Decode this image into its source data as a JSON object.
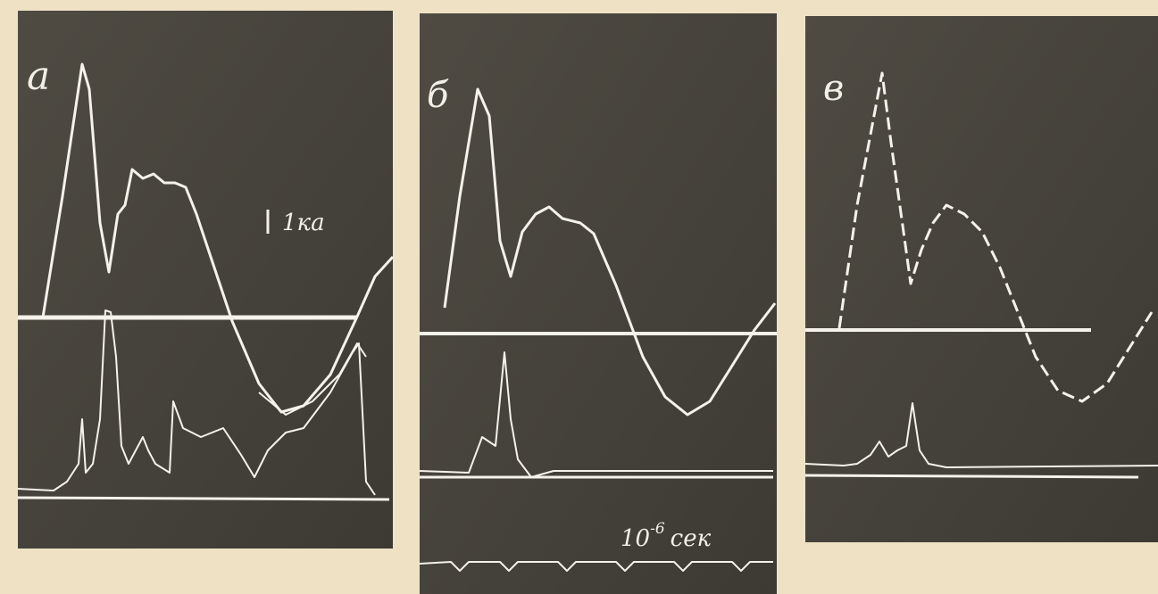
{
  "panels": [
    {
      "label": "а",
      "scale_current": "1ка"
    },
    {
      "label": "б",
      "scale_time": {
        "base": "10",
        "exponent": "-6",
        "unit": "сек"
      }
    },
    {
      "label": "в"
    }
  ]
}
